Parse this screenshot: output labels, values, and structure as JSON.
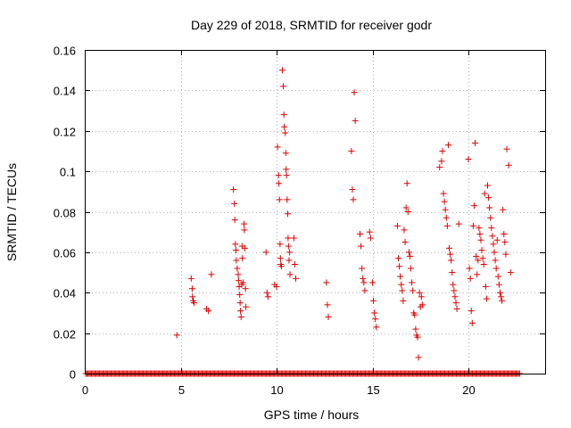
{
  "chart_data": {
    "type": "scatter",
    "title": "Day 229 of 2018, SRMTID for receiver godr",
    "xlabel": "GPS time / hours",
    "ylabel": "SRMTID / TECUs",
    "xlim": [
      0,
      24
    ],
    "ylim": [
      0,
      0.16
    ],
    "x_ticks": [
      0,
      5,
      10,
      15,
      20
    ],
    "y_ticks": [
      0,
      0.02,
      0.04,
      0.06,
      0.08,
      0.1,
      0.12,
      0.14,
      0.16
    ],
    "x_tick_labels": [
      "0",
      "5",
      "10",
      "15",
      "20"
    ],
    "y_tick_labels": [
      "0",
      "0.02",
      "0.04",
      "0.06",
      "0.08",
      "0.1",
      "0.12",
      "0.14",
      "0.16"
    ],
    "grid": true,
    "marker": "plus",
    "color": "#e00000",
    "zero_band": {
      "x_from": 0.05,
      "x_to": 22.7,
      "y": 0
    },
    "series": [
      {
        "name": "SRMTID",
        "x": [
          4.8,
          5.55,
          5.6,
          5.62,
          5.65,
          5.7,
          6.35,
          6.45,
          6.6,
          7.75,
          7.8,
          7.82,
          7.85,
          7.88,
          7.9,
          7.95,
          8.0,
          8.02,
          8.05,
          8.08,
          8.1,
          8.12,
          8.15,
          8.18,
          8.2,
          8.22,
          8.25,
          8.3,
          8.32,
          8.35,
          8.38,
          8.4,
          9.45,
          9.5,
          9.55,
          9.9,
          10.0,
          10.05,
          10.1,
          10.12,
          10.15,
          10.18,
          10.2,
          10.22,
          10.25,
          10.3,
          10.35,
          10.38,
          10.4,
          10.45,
          10.48,
          10.5,
          10.52,
          10.55,
          10.58,
          10.6,
          10.62,
          10.65,
          10.68,
          10.7,
          10.9,
          10.95,
          11.0,
          12.6,
          12.65,
          12.7,
          13.9,
          13.95,
          14.0,
          14.05,
          14.1,
          14.35,
          14.4,
          14.45,
          14.5,
          14.55,
          14.6,
          14.85,
          14.9,
          15.0,
          15.05,
          15.1,
          15.15,
          15.2,
          16.3,
          16.35,
          16.4,
          16.45,
          16.5,
          16.55,
          16.6,
          16.65,
          16.7,
          16.75,
          16.8,
          16.85,
          16.9,
          16.95,
          17.0,
          17.05,
          17.1,
          17.15,
          17.2,
          17.25,
          17.3,
          17.35,
          17.4,
          17.45,
          17.5,
          17.55,
          17.6,
          18.5,
          18.6,
          18.65,
          18.7,
          18.75,
          18.8,
          18.85,
          18.9,
          18.95,
          19.0,
          19.05,
          19.1,
          19.15,
          19.2,
          19.25,
          19.3,
          19.35,
          19.4,
          19.5,
          20.0,
          20.05,
          20.1,
          20.15,
          20.2,
          20.25,
          20.3,
          20.35,
          20.4,
          20.45,
          20.5,
          20.55,
          20.6,
          20.65,
          20.7,
          20.75,
          20.8,
          20.85,
          20.9,
          20.95,
          21.0,
          21.05,
          21.1,
          21.15,
          21.2,
          21.25,
          21.3,
          21.35,
          21.4,
          21.45,
          21.5,
          21.55,
          21.6,
          21.65,
          21.7,
          21.75,
          21.8,
          21.85,
          21.9,
          21.95,
          22.0,
          22.1,
          22.2
        ],
        "y": [
          0.019,
          0.047,
          0.042,
          0.038,
          0.036,
          0.035,
          0.032,
          0.031,
          0.049,
          0.091,
          0.084,
          0.076,
          0.064,
          0.061,
          0.056,
          0.052,
          0.049,
          0.046,
          0.043,
          0.039,
          0.035,
          0.031,
          0.028,
          0.044,
          0.063,
          0.057,
          0.045,
          0.074,
          0.071,
          0.062,
          0.042,
          0.033,
          0.06,
          0.04,
          0.038,
          0.044,
          0.043,
          0.112,
          0.098,
          0.094,
          0.086,
          0.064,
          0.057,
          0.054,
          0.053,
          0.15,
          0.142,
          0.128,
          0.122,
          0.119,
          0.109,
          0.101,
          0.098,
          0.086,
          0.079,
          0.067,
          0.063,
          0.056,
          0.06,
          0.049,
          0.067,
          0.054,
          0.047,
          0.045,
          0.034,
          0.028,
          0.11,
          0.091,
          0.086,
          0.139,
          0.125,
          0.069,
          0.063,
          0.052,
          0.047,
          0.045,
          0.041,
          0.07,
          0.067,
          0.045,
          0.036,
          0.03,
          0.027,
          0.023,
          0.073,
          0.057,
          0.053,
          0.048,
          0.044,
          0.041,
          0.036,
          0.071,
          0.065,
          0.082,
          0.094,
          0.08,
          0.06,
          0.058,
          0.052,
          0.045,
          0.041,
          0.03,
          0.029,
          0.022,
          0.019,
          0.018,
          0.008,
          0.04,
          0.033,
          0.038,
          0.034,
          0.102,
          0.105,
          0.11,
          0.089,
          0.085,
          0.081,
          0.077,
          0.073,
          0.113,
          0.062,
          0.059,
          0.056,
          0.05,
          0.044,
          0.041,
          0.038,
          0.035,
          0.032,
          0.074,
          0.106,
          0.052,
          0.047,
          0.031,
          0.025,
          0.073,
          0.083,
          0.114,
          0.058,
          0.049,
          0.056,
          0.072,
          0.069,
          0.066,
          0.061,
          0.057,
          0.054,
          0.089,
          0.043,
          0.037,
          0.093,
          0.087,
          0.082,
          0.077,
          0.072,
          0.068,
          0.064,
          0.06,
          0.056,
          0.052,
          0.066,
          0.048,
          0.044,
          0.04,
          0.038,
          0.036,
          0.081,
          0.069,
          0.065,
          0.059,
          0.111,
          0.103,
          0.05
        ]
      }
    ]
  }
}
